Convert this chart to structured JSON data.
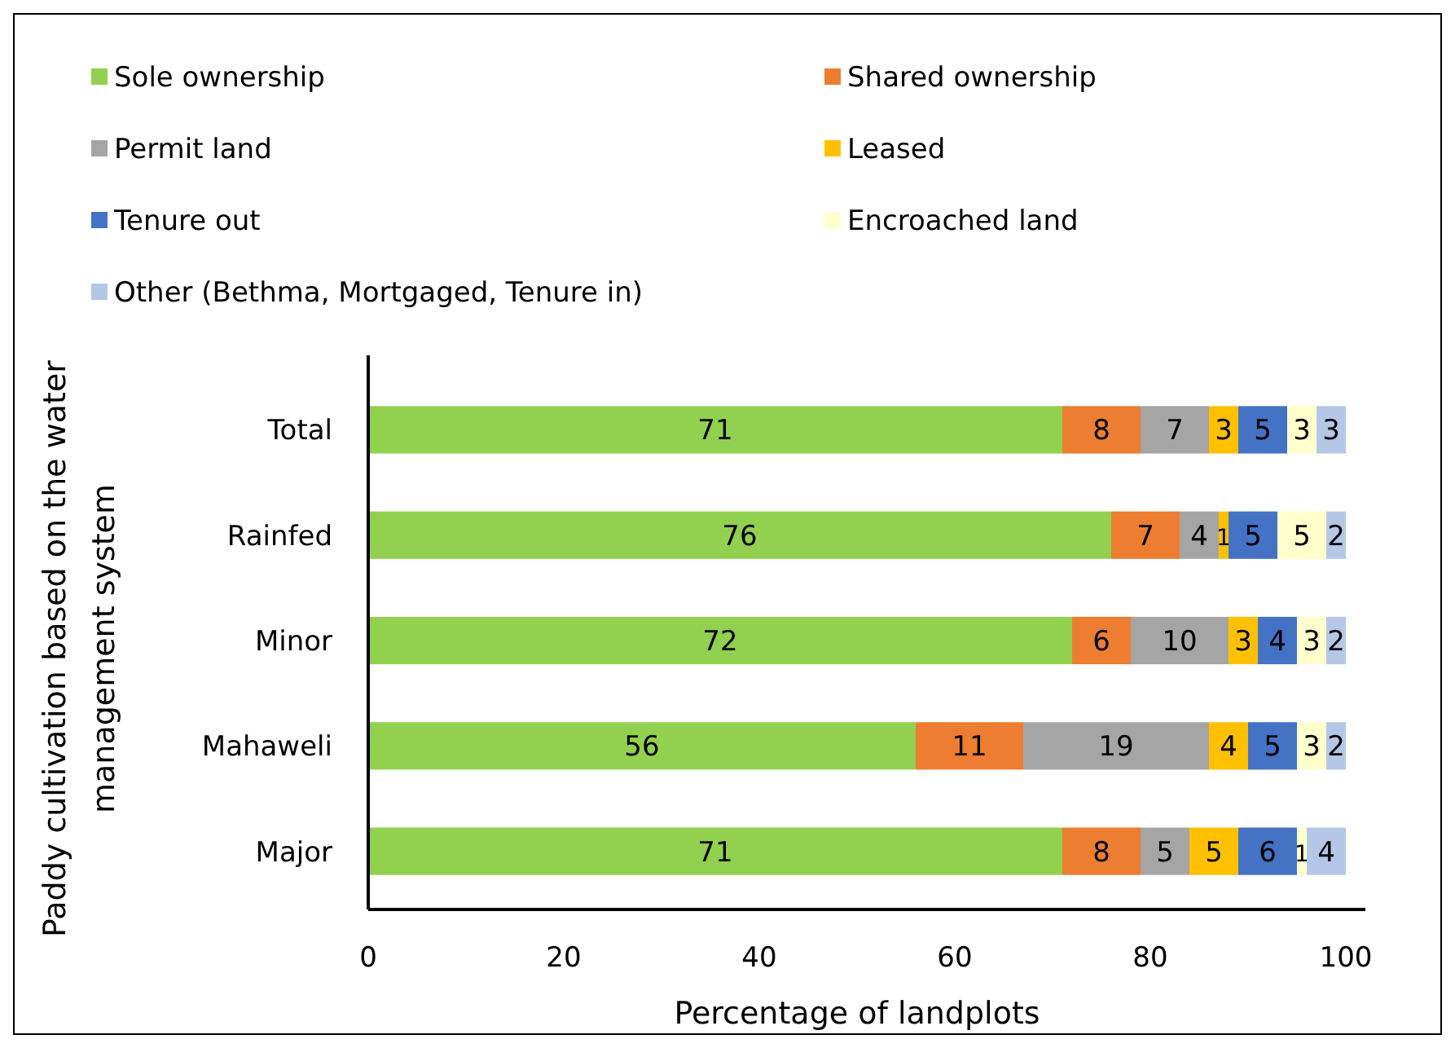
{
  "chart_data": {
    "type": "bar",
    "orientation": "horizontal",
    "stacked": true,
    "data_labels": true,
    "legend": "top",
    "xlabel": "Percentage of landplots",
    "ylabel": "Paddy cultivation based on the water management system",
    "categories": [
      "Total",
      "Rainfed",
      "Minor",
      "Mahaweli",
      "Major"
    ],
    "xlim": [
      0,
      100
    ],
    "xticks": [
      0,
      20,
      40,
      60,
      80,
      100
    ],
    "series": [
      {
        "name": "Sole ownership",
        "color": "#92d050",
        "values": [
          71,
          76,
          72,
          56,
          71
        ]
      },
      {
        "name": "Shared ownership",
        "color": "#ed7d31",
        "values": [
          8,
          7,
          6,
          11,
          8
        ]
      },
      {
        "name": "Permit land",
        "color": "#a5a5a5",
        "values": [
          7,
          4,
          10,
          19,
          5
        ]
      },
      {
        "name": "Leased",
        "color": "#ffc000",
        "values": [
          3,
          1,
          3,
          4,
          5
        ]
      },
      {
        "name": "Tenure out",
        "color": "#4472c4",
        "values": [
          5,
          5,
          4,
          5,
          6
        ]
      },
      {
        "name": "Encroached land",
        "color": "#ffffcc",
        "values": [
          3,
          5,
          3,
          3,
          1
        ]
      },
      {
        "name": "Other (Bethma, Mortgaged, Tenure in)",
        "color": "#b4c7e7",
        "values": [
          3,
          2,
          2,
          2,
          4
        ]
      }
    ]
  }
}
